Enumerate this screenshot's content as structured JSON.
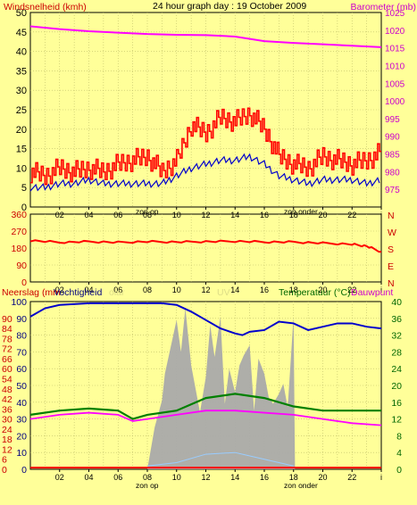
{
  "chart_data": [
    {
      "type": "line",
      "panel": "wind-barometer",
      "title": "24 hour graph day : 19 October 2009",
      "left_label": "Windsnelheid (kmh)",
      "right_label": "Barometer (mb)",
      "x_tick_labels": [
        "02",
        "04",
        "06",
        "08",
        "10",
        "12",
        "14",
        "16",
        "18",
        "20",
        "22",
        "i"
      ],
      "x_markers": [
        "zon op",
        "zon onder"
      ],
      "ylim_left": [
        0,
        50
      ],
      "yticks_left": [
        0,
        5,
        10,
        15,
        20,
        25,
        30,
        35,
        40,
        45,
        50
      ],
      "ylim_right": [
        970,
        1025
      ],
      "yticks_right": [
        975,
        980,
        985,
        990,
        995,
        1000,
        1005,
        1010,
        1015,
        1020,
        1025
      ],
      "grid": true,
      "series": [
        {
          "name": "Barometer (mb)",
          "axis": "right",
          "color": "#ff00ff",
          "x": [
            0,
            2,
            4,
            6,
            8,
            10,
            12,
            14,
            16,
            18,
            20,
            22,
            24
          ],
          "values": [
            1021.1,
            1020.3,
            1019.7,
            1019.3,
            1018.9,
            1018.7,
            1018.6,
            1018.2,
            1016.9,
            1016.4,
            1016.0,
            1015.6,
            1015.2
          ]
        },
        {
          "name": "",
          "axis": "left",
          "color": "#ff0000",
          "x": [
            0,
            1,
            2,
            3,
            4,
            5,
            6,
            7,
            8,
            9,
            10,
            11,
            12,
            13,
            14,
            15,
            16,
            17,
            18,
            19,
            20,
            21,
            22,
            23,
            24
          ],
          "values": [
            9,
            8,
            10,
            9,
            10,
            9,
            11,
            12,
            13,
            9,
            12,
            21,
            19,
            23,
            22,
            24,
            20,
            13,
            11,
            10,
            13,
            12,
            11,
            12,
            14
          ]
        },
        {
          "name": "",
          "axis": "left",
          "color": "#0000cc",
          "x": [
            0,
            1,
            2,
            3,
            4,
            5,
            6,
            7,
            8,
            9,
            10,
            11,
            12,
            13,
            14,
            15,
            16,
            17,
            18,
            19,
            20,
            21,
            22,
            23,
            24
          ],
          "values": [
            5,
            5,
            6,
            6,
            7,
            6,
            6,
            6,
            6,
            6,
            8,
            10,
            11,
            12,
            12,
            13,
            11,
            8,
            7,
            6,
            7,
            7,
            7,
            6,
            7
          ]
        }
      ]
    },
    {
      "type": "line",
      "panel": "wind-direction",
      "ylim_left": [
        0,
        360
      ],
      "yticks_left": [
        0,
        90,
        180,
        270,
        360
      ],
      "right_tick_labels": [
        "N",
        "W",
        "S",
        "E",
        "N"
      ],
      "x_tick_labels": [
        "02",
        "04",
        "06",
        "08",
        "10",
        "12",
        "14",
        "16",
        "18",
        "20",
        "22",
        "i"
      ],
      "grid": true,
      "series": [
        {
          "name": "",
          "color": "#ff0000",
          "x": [
            0,
            2,
            4,
            6,
            8,
            10,
            12,
            14,
            16,
            18,
            20,
            22,
            23,
            24
          ],
          "values": [
            220,
            210,
            214,
            210,
            214,
            212,
            214,
            216,
            212,
            212,
            206,
            200,
            190,
            160
          ]
        }
      ]
    },
    {
      "type": "line",
      "panel": "rain-humidity-temperature",
      "left_labels": [
        "Neerslag (mm",
        "Vochtigheid",
        "olar"
      ],
      "center_label": "UV",
      "right_labels": [
        "Temperatuur (°C)",
        "Dauwpunt"
      ],
      "x_tick_labels": [
        "02",
        "04",
        "06",
        "08",
        "10",
        "12",
        "14",
        "16",
        "18",
        "20",
        "22",
        "i"
      ],
      "x_markers": [
        "zon op",
        "zon onder"
      ],
      "ylim_left": [
        0,
        100
      ],
      "yticks_left": [
        0,
        10,
        20,
        30,
        40,
        50,
        60,
        70,
        80,
        90,
        100
      ],
      "yticks_left_alt": [
        0,
        6,
        12,
        18,
        24,
        30,
        36,
        42,
        48,
        54,
        60,
        66,
        72,
        78,
        84,
        90
      ],
      "ylim_right": [
        0,
        40
      ],
      "yticks_right": [
        0,
        4,
        8,
        12,
        16,
        20,
        24,
        28,
        32,
        36,
        40
      ],
      "grid": true,
      "series": [
        {
          "name": "Vochtigheid",
          "axis": "left",
          "color": "#0000cc",
          "x": [
            0,
            1,
            2,
            4,
            6,
            8,
            9,
            10,
            11,
            12,
            13,
            14,
            14.5,
            15,
            16,
            17,
            18,
            19,
            20,
            21,
            22,
            23,
            24
          ],
          "values": [
            91,
            96,
            98,
            99,
            99,
            99,
            99,
            98,
            94,
            89,
            84,
            81,
            80,
            82,
            83,
            88,
            87,
            83,
            85,
            87,
            87,
            85,
            84
          ]
        },
        {
          "name": "",
          "axis": "right",
          "color": "#008000",
          "x": [
            0,
            2,
            4,
            6,
            7,
            8,
            10,
            12,
            13,
            14,
            15,
            16,
            18,
            20,
            22,
            24
          ],
          "values": [
            13,
            14,
            14.5,
            14,
            12,
            13,
            14,
            17,
            17.5,
            18,
            17.5,
            17,
            15,
            14,
            14,
            14
          ]
        },
        {
          "name": "Dauwpunt",
          "axis": "right",
          "color": "#ff00ff",
          "x": [
            0,
            2,
            4,
            6,
            7,
            8,
            10,
            12,
            14,
            16,
            18,
            20,
            22,
            24
          ],
          "values": [
            12,
            13,
            13.5,
            13,
            11.5,
            12,
            13,
            14,
            14,
            13.5,
            13,
            12,
            11,
            10.5
          ]
        },
        {
          "name": "",
          "axis": "left",
          "color": "#aaaaaa",
          "kind": "area",
          "x": [
            8,
            8.5,
            9,
            9.2,
            9.6,
            10,
            10.3,
            10.6,
            11,
            11.3,
            11.6,
            12,
            12.3,
            12.6,
            13,
            13.3,
            13.6,
            14,
            14.3,
            14.6,
            15,
            15.3,
            15.6,
            16,
            16.3,
            16.6,
            17,
            17.3,
            17.6,
            18,
            18.1
          ],
          "values": [
            0,
            25,
            35,
            60,
            70,
            95,
            70,
            90,
            65,
            45,
            40,
            55,
            80,
            70,
            88,
            45,
            60,
            40,
            65,
            65,
            80,
            35,
            60,
            60,
            40,
            45,
            45,
            45,
            40,
            88,
            0
          ]
        },
        {
          "name": "",
          "axis": "left",
          "color": "#ff0000",
          "x": [
            0,
            24
          ],
          "values": [
            1,
            1
          ]
        }
      ]
    }
  ]
}
